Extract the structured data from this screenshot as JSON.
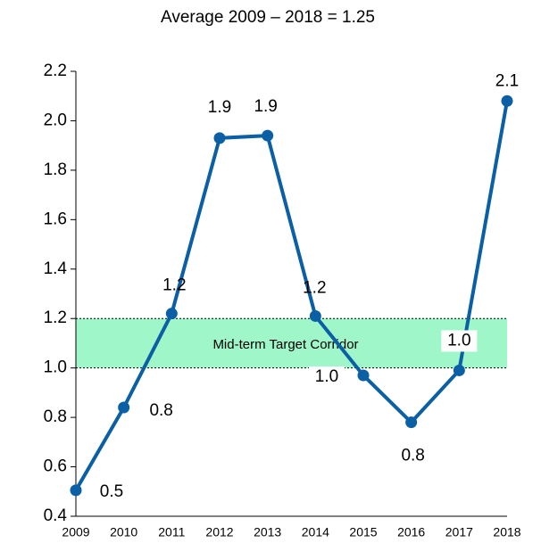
{
  "chart_data": {
    "type": "line",
    "subtitle": "Average 2009 – 2018 = 1.25",
    "categories": [
      "2009",
      "2010",
      "2011",
      "2012",
      "2013",
      "2014",
      "2015",
      "2016",
      "2017",
      "2018"
    ],
    "series": [
      {
        "color": "#0b5fa5",
        "values": [
          0.505,
          0.84,
          1.22,
          1.93,
          1.94,
          1.21,
          0.97,
          0.78,
          0.99,
          2.08
        ],
        "value_labels": [
          "0.5",
          "0.8",
          "1.2",
          "1.9",
          "1.9",
          "1.2",
          "1.0",
          "0.8",
          "1.0",
          "2.1"
        ]
      }
    ],
    "ylim": [
      0.4,
      2.2
    ],
    "yticks": [
      {
        "value": 0.4,
        "label": "0.4"
      },
      {
        "value": 0.6,
        "label": "0.6"
      },
      {
        "value": 0.8,
        "label": "0.8"
      },
      {
        "value": 1.0,
        "label": "1.0"
      },
      {
        "value": 1.2,
        "label": "1.2"
      },
      {
        "value": 1.4,
        "label": "1.4"
      },
      {
        "value": 1.6,
        "label": "1.6"
      },
      {
        "value": 1.8,
        "label": "1.8"
      },
      {
        "value": 2.0,
        "label": "2.0"
      },
      {
        "value": 2.2,
        "label": "2.2"
      }
    ],
    "band": {
      "label": "Mid-term  Target Corridor",
      "range": [
        1.0,
        1.2
      ],
      "color": "#9ff7c9"
    }
  }
}
